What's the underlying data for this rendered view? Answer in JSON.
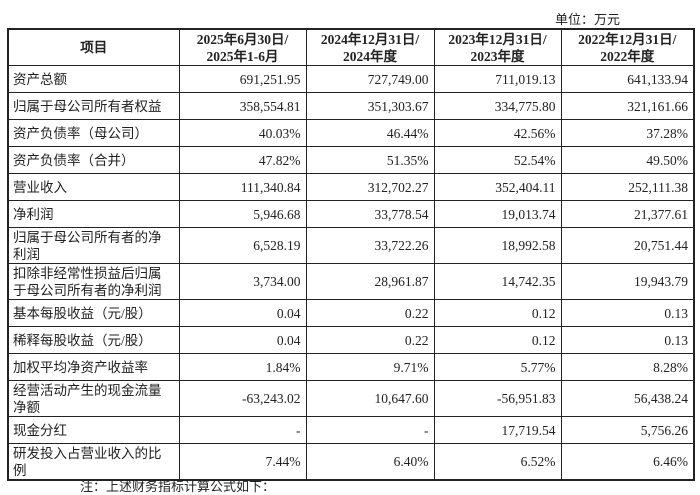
{
  "unit": "单位：万元",
  "headers": [
    "项目",
    "2025年6月30日/\n2025年1-6月",
    "2024年12月31日/\n2024年度",
    "2023年12月31日/\n2023年度",
    "2022年12月31日/\n2022年度"
  ],
  "rows": [
    {
      "label": "资产总额",
      "values": [
        "691,251.95",
        "727,749.00",
        "711,019.13",
        "641,133.94"
      ]
    },
    {
      "label": "归属于母公司所有者权益",
      "values": [
        "358,554.81",
        "351,303.67",
        "334,775.80",
        "321,161.66"
      ]
    },
    {
      "label": "资产负债率（母公司）",
      "values": [
        "40.03%",
        "46.44%",
        "42.56%",
        "37.28%"
      ]
    },
    {
      "label": "资产负债率（合并）",
      "values": [
        "47.82%",
        "51.35%",
        "52.54%",
        "49.50%"
      ]
    },
    {
      "label": "营业收入",
      "values": [
        "111,340.84",
        "312,702.27",
        "352,404.11",
        "252,111.38"
      ]
    },
    {
      "label": "净利润",
      "values": [
        "5,946.68",
        "33,778.54",
        "19,013.74",
        "21,377.61"
      ]
    },
    {
      "label": "归属于母公司所有者的净利润",
      "values": [
        "6,528.19",
        "33,722.26",
        "18,992.58",
        "20,751.44"
      ]
    },
    {
      "label": "扣除非经常性损益后归属于母公司所有者的净利润",
      "values": [
        "3,734.00",
        "28,961.87",
        "14,742.35",
        "19,943.79"
      ]
    },
    {
      "label": "基本每股收益（元/股）",
      "values": [
        "0.04",
        "0.22",
        "0.12",
        "0.13"
      ]
    },
    {
      "label": "稀释每股收益（元/股）",
      "values": [
        "0.04",
        "0.22",
        "0.12",
        "0.13"
      ]
    },
    {
      "label": "加权平均净资产收益率",
      "values": [
        "1.84%",
        "9.71%",
        "5.77%",
        "8.28%"
      ]
    },
    {
      "label": "经营活动产生的现金流量净额",
      "values": [
        "-63,243.02",
        "10,647.60",
        "-56,951.83",
        "56,438.24"
      ]
    },
    {
      "label": "现金分红",
      "values": [
        "-",
        "-",
        "17,719.54",
        "5,756.26"
      ]
    },
    {
      "label": "研发投入占营业收入的比例",
      "values": [
        "7.44%",
        "6.40%",
        "6.52%",
        "6.46%"
      ]
    }
  ],
  "note": "注：上述财务指标计算公式如下："
}
